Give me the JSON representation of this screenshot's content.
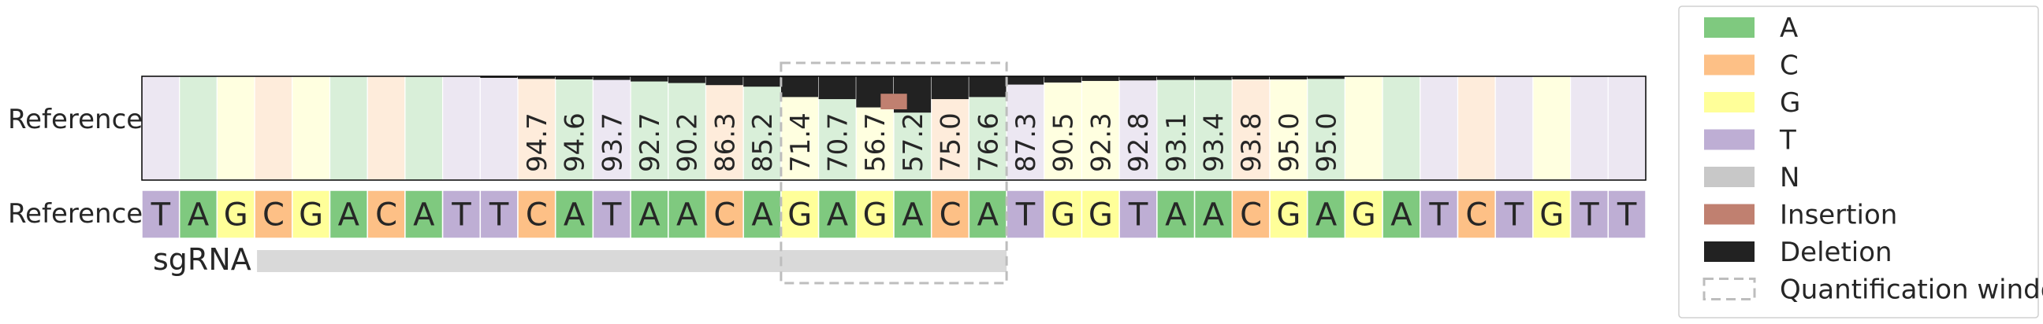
{
  "chart_data": {
    "type": "heatmap",
    "row_labels": {
      "top": "Reference",
      "bottom": "Reference"
    },
    "guide_label": "sgRNA",
    "reference_sequence": [
      "T",
      "A",
      "G",
      "C",
      "G",
      "A",
      "C",
      "A",
      "T",
      "T",
      "C",
      "A",
      "T",
      "A",
      "A",
      "C",
      "A",
      "G",
      "A",
      "G",
      "A",
      "C",
      "A",
      "T",
      "G",
      "G",
      "T",
      "A",
      "A",
      "C",
      "G",
      "A",
      "G",
      "A",
      "T",
      "C",
      "T",
      "G",
      "T",
      "T"
    ],
    "percent_reference": [
      null,
      null,
      null,
      null,
      null,
      null,
      null,
      null,
      null,
      null,
      94.7,
      94.6,
      93.7,
      92.7,
      90.2,
      86.3,
      85.2,
      71.4,
      70.7,
      56.7,
      57.2,
      75.0,
      76.6,
      87.3,
      90.5,
      92.3,
      92.8,
      93.1,
      93.4,
      93.8,
      95.0,
      95.0,
      null,
      null,
      null,
      null,
      null,
      null,
      null,
      null
    ],
    "deletion_fraction": [
      0,
      0,
      0,
      0,
      0,
      0,
      0,
      0,
      0,
      0.015,
      0.025,
      0.03,
      0.035,
      0.05,
      0.065,
      0.085,
      0.1,
      0.2,
      0.22,
      0.3,
      0.35,
      0.22,
      0.2,
      0.08,
      0.06,
      0.045,
      0.04,
      0.035,
      0.035,
      0.03,
      0.03,
      0.025,
      0,
      0,
      0,
      0,
      0,
      0,
      0,
      0
    ],
    "insertion_fraction": [
      0,
      0,
      0,
      0,
      0,
      0,
      0,
      0,
      0,
      0,
      0,
      0,
      0,
      0,
      0,
      0,
      0,
      0,
      0,
      0,
      0.15,
      0,
      0,
      0,
      0,
      0,
      0,
      0,
      0,
      0,
      0,
      0,
      0,
      0,
      0,
      0,
      0,
      0,
      0,
      0
    ],
    "sgrna_span": [
      3,
      22
    ],
    "quantification_window": [
      17,
      22
    ],
    "colors": {
      "A": "#7fc97f",
      "C": "#fdc086",
      "G": "#ffff99",
      "T": "#beaed4",
      "N": "#c8c8c8",
      "Insertion": "#c08070",
      "Deletion": "#222222",
      "window": "#bdbdbd",
      "sgrna": "#d9d9d9"
    },
    "legend": [
      "A",
      "C",
      "G",
      "T",
      "N",
      "Insertion",
      "Deletion",
      "Quantification window"
    ]
  }
}
